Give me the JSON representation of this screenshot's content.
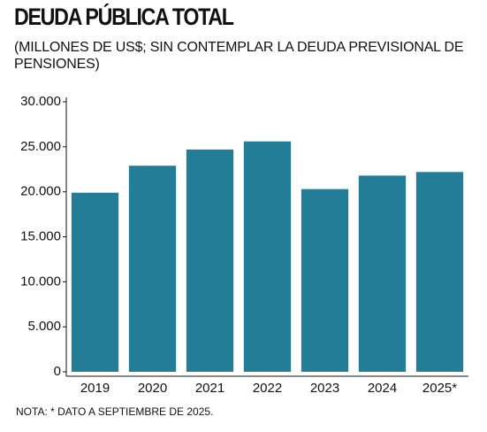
{
  "chart_data": {
    "type": "bar",
    "title": "DEUDA PÚBLICA TOTAL",
    "subtitle": "(MILLONES DE US$; SIN CONTEMPLAR LA DEUDA PREVISIONAL DE PENSIONES)",
    "categories": [
      "2019",
      "2020",
      "2021",
      "2022",
      "2023",
      "2024",
      "2025*"
    ],
    "values": [
      19900,
      22900,
      24700,
      25600,
      20300,
      21800,
      22200
    ],
    "color": "#237d96",
    "ylim": [
      0,
      30000
    ],
    "yticks": [
      0,
      {
        "value": 5000,
        "label": "5.000"
      },
      {
        "value": 10000,
        "label": "10.000"
      },
      {
        "value": 15000,
        "label": "15.000"
      },
      {
        "value": 20000,
        "label": "20.000"
      },
      {
        "value": 25000,
        "label": "25.000"
      },
      {
        "value": 30000,
        "label": "30.000"
      }
    ],
    "note": "NOTA: * DATO A SEPTIEMBRE DE 2025."
  }
}
